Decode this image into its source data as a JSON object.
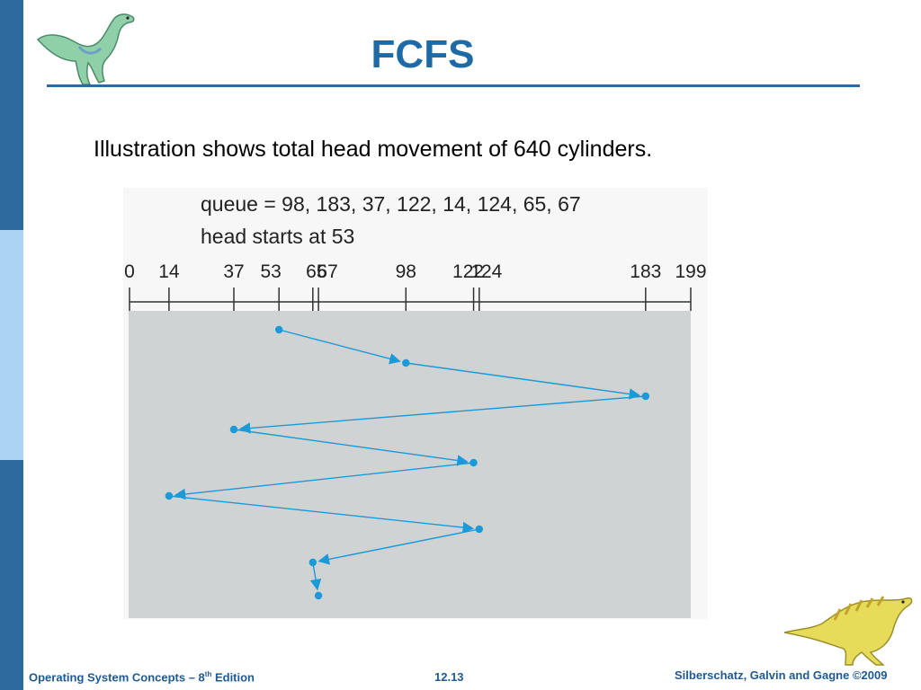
{
  "slide": {
    "title": "FCFS",
    "subtitle": "Illustration shows total head movement of 640 cylinders."
  },
  "figure": {
    "queue_line": "queue = 98, 183, 37, 122, 14, 124, 65, 67",
    "head_line": "head starts at 53",
    "axis_min": 0,
    "axis_max": 199,
    "tick_values": [
      0,
      14,
      37,
      53,
      65,
      67,
      98,
      122,
      124,
      183,
      199
    ],
    "tick_labels": [
      "0",
      "14",
      "37",
      "53",
      "65",
      "67",
      "98",
      "122",
      "124",
      "183",
      "199"
    ],
    "path": [
      53,
      98,
      183,
      37,
      122,
      14,
      124,
      65,
      67
    ],
    "path_color": "#1a9ad8",
    "panel_color": "#d0d3d4"
  },
  "footer": {
    "left_prefix": "Operating System Concepts – 8",
    "left_sup": "th",
    "left_suffix": " Edition",
    "page": "12.13",
    "right": "Silberschatz, Galvin and Gagne ©2009"
  },
  "colors": {
    "sidebar_dark": "#2f6a9f",
    "sidebar_light": "#aad4f2",
    "title": "#1d6aa6",
    "footer": "#1f5a92"
  },
  "icons": [
    "dinosaur-top-left-icon",
    "dinosaur-bottom-right-icon"
  ]
}
